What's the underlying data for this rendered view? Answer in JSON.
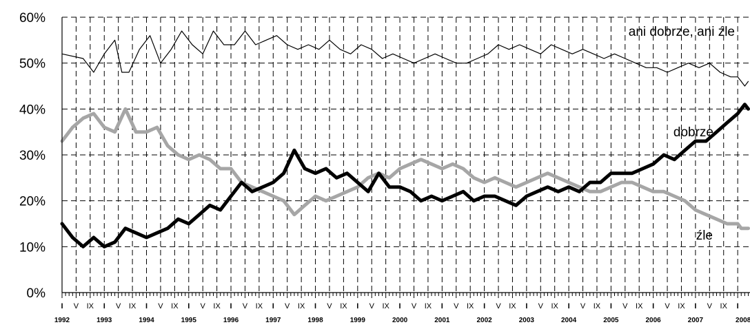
{
  "chart_data": {
    "type": "line",
    "ylim": [
      0,
      60
    ],
    "y_ticks": [
      "0%",
      "10%",
      "20%",
      "30%",
      "40%",
      "50%",
      "60%"
    ],
    "x_start": "1992-01",
    "x_end": "2008-04",
    "month_tick_labels": {
      "1": "I",
      "5": "V",
      "9": "IX"
    },
    "years": [
      "1992",
      "1993",
      "1994",
      "1995",
      "1996",
      "1997",
      "1998",
      "1999",
      "2000",
      "2001",
      "2002",
      "2003",
      "2004",
      "2005",
      "2006",
      "2007",
      "2008"
    ],
    "grid": true,
    "series": [
      {
        "name": "ani dobrze, ani źle",
        "color": "#000000",
        "style": "thin",
        "points": [
          [
            "1992-01",
            52
          ],
          [
            "1992-07",
            51
          ],
          [
            "1992-10",
            48
          ],
          [
            "1993-01",
            52
          ],
          [
            "1993-04",
            55
          ],
          [
            "1993-06",
            48
          ],
          [
            "1993-08",
            48
          ],
          [
            "1993-11",
            53
          ],
          [
            "1994-02",
            56
          ],
          [
            "1994-05",
            50
          ],
          [
            "1994-08",
            53
          ],
          [
            "1994-11",
            57
          ],
          [
            "1995-02",
            54
          ],
          [
            "1995-05",
            52
          ],
          [
            "1995-08",
            57
          ],
          [
            "1995-11",
            54
          ],
          [
            "1996-02",
            54
          ],
          [
            "1996-05",
            57
          ],
          [
            "1996-08",
            54
          ],
          [
            "1996-11",
            55
          ],
          [
            "1997-02",
            56
          ],
          [
            "1997-05",
            54
          ],
          [
            "1997-08",
            53
          ],
          [
            "1997-11",
            54
          ],
          [
            "1998-02",
            53
          ],
          [
            "1998-05",
            55
          ],
          [
            "1998-08",
            53
          ],
          [
            "1998-11",
            52
          ],
          [
            "1999-02",
            54
          ],
          [
            "1999-05",
            53
          ],
          [
            "1999-08",
            51
          ],
          [
            "1999-11",
            52
          ],
          [
            "2000-02",
            51
          ],
          [
            "2000-05",
            50
          ],
          [
            "2000-08",
            51
          ],
          [
            "2000-11",
            52
          ],
          [
            "2001-02",
            51
          ],
          [
            "2001-05",
            50
          ],
          [
            "2001-08",
            50
          ],
          [
            "2001-11",
            51
          ],
          [
            "2002-02",
            52
          ],
          [
            "2002-05",
            54
          ],
          [
            "2002-08",
            53
          ],
          [
            "2002-11",
            54
          ],
          [
            "2003-02",
            53
          ],
          [
            "2003-05",
            52
          ],
          [
            "2003-08",
            54
          ],
          [
            "2003-11",
            53
          ],
          [
            "2004-02",
            52
          ],
          [
            "2004-05",
            53
          ],
          [
            "2004-08",
            52
          ],
          [
            "2004-11",
            51
          ],
          [
            "2005-02",
            52
          ],
          [
            "2005-05",
            51
          ],
          [
            "2005-08",
            50
          ],
          [
            "2005-11",
            49
          ],
          [
            "2006-02",
            49
          ],
          [
            "2006-05",
            48
          ],
          [
            "2006-08",
            49
          ],
          [
            "2006-11",
            50
          ],
          [
            "2007-02",
            49
          ],
          [
            "2007-05",
            50
          ],
          [
            "2007-08",
            48
          ],
          [
            "2007-11",
            47
          ],
          [
            "2008-01",
            47
          ],
          [
            "2008-02",
            46
          ],
          [
            "2008-03",
            45
          ],
          [
            "2008-04",
            46
          ]
        ]
      },
      {
        "name": "dobrze",
        "color": "#000000",
        "style": "thick",
        "points": [
          [
            "1992-01",
            15
          ],
          [
            "1992-04",
            12
          ],
          [
            "1992-07",
            10
          ],
          [
            "1992-10",
            12
          ],
          [
            "1993-01",
            10
          ],
          [
            "1993-04",
            11
          ],
          [
            "1993-07",
            14
          ],
          [
            "1993-10",
            13
          ],
          [
            "1994-01",
            12
          ],
          [
            "1994-04",
            13
          ],
          [
            "1994-07",
            14
          ],
          [
            "1994-10",
            16
          ],
          [
            "1995-01",
            15
          ],
          [
            "1995-04",
            17
          ],
          [
            "1995-07",
            19
          ],
          [
            "1995-10",
            18
          ],
          [
            "1996-01",
            21
          ],
          [
            "1996-04",
            24
          ],
          [
            "1996-07",
            22
          ],
          [
            "1996-10",
            23
          ],
          [
            "1997-01",
            24
          ],
          [
            "1997-04",
            26
          ],
          [
            "1997-07",
            31
          ],
          [
            "1997-10",
            27
          ],
          [
            "1998-01",
            26
          ],
          [
            "1998-04",
            27
          ],
          [
            "1998-07",
            25
          ],
          [
            "1998-10",
            26
          ],
          [
            "1999-01",
            24
          ],
          [
            "1999-04",
            22
          ],
          [
            "1999-07",
            26
          ],
          [
            "1999-10",
            23
          ],
          [
            "2000-01",
            23
          ],
          [
            "2000-04",
            22
          ],
          [
            "2000-07",
            20
          ],
          [
            "2000-10",
            21
          ],
          [
            "2001-01",
            20
          ],
          [
            "2001-04",
            21
          ],
          [
            "2001-07",
            22
          ],
          [
            "2001-10",
            20
          ],
          [
            "2002-01",
            21
          ],
          [
            "2002-04",
            21
          ],
          [
            "2002-07",
            20
          ],
          [
            "2002-10",
            19
          ],
          [
            "2003-01",
            21
          ],
          [
            "2003-04",
            22
          ],
          [
            "2003-07",
            23
          ],
          [
            "2003-10",
            22
          ],
          [
            "2004-01",
            23
          ],
          [
            "2004-04",
            22
          ],
          [
            "2004-07",
            24
          ],
          [
            "2004-10",
            24
          ],
          [
            "2005-01",
            26
          ],
          [
            "2005-04",
            26
          ],
          [
            "2005-07",
            26
          ],
          [
            "2005-10",
            27
          ],
          [
            "2006-01",
            28
          ],
          [
            "2006-04",
            30
          ],
          [
            "2006-07",
            29
          ],
          [
            "2006-10",
            31
          ],
          [
            "2007-01",
            33
          ],
          [
            "2007-04",
            33
          ],
          [
            "2007-07",
            35
          ],
          [
            "2007-10",
            37
          ],
          [
            "2008-01",
            39
          ],
          [
            "2008-02",
            40
          ],
          [
            "2008-03",
            41
          ],
          [
            "2008-04",
            40
          ]
        ]
      },
      {
        "name": "źle",
        "color": "#a6a6a6",
        "style": "thick",
        "points": [
          [
            "1992-01",
            33
          ],
          [
            "1992-04",
            36
          ],
          [
            "1992-07",
            38
          ],
          [
            "1992-10",
            39
          ],
          [
            "1993-01",
            36
          ],
          [
            "1993-04",
            35
          ],
          [
            "1993-07",
            40
          ],
          [
            "1993-10",
            35
          ],
          [
            "1994-01",
            35
          ],
          [
            "1994-04",
            36
          ],
          [
            "1994-07",
            32
          ],
          [
            "1994-10",
            30
          ],
          [
            "1995-01",
            29
          ],
          [
            "1995-04",
            30
          ],
          [
            "1995-07",
            29
          ],
          [
            "1995-10",
            27
          ],
          [
            "1996-01",
            27
          ],
          [
            "1996-04",
            24
          ],
          [
            "1996-07",
            23
          ],
          [
            "1996-10",
            22
          ],
          [
            "1997-01",
            21
          ],
          [
            "1997-04",
            20
          ],
          [
            "1997-07",
            17
          ],
          [
            "1997-10",
            19
          ],
          [
            "1998-01",
            21
          ],
          [
            "1998-04",
            20
          ],
          [
            "1998-07",
            21
          ],
          [
            "1998-10",
            22
          ],
          [
            "1999-01",
            23
          ],
          [
            "1999-04",
            25
          ],
          [
            "1999-07",
            26
          ],
          [
            "1999-10",
            25
          ],
          [
            "2000-01",
            27
          ],
          [
            "2000-04",
            28
          ],
          [
            "2000-07",
            29
          ],
          [
            "2000-10",
            28
          ],
          [
            "2001-01",
            27
          ],
          [
            "2001-04",
            28
          ],
          [
            "2001-07",
            27
          ],
          [
            "2001-10",
            25
          ],
          [
            "2002-01",
            24
          ],
          [
            "2002-04",
            25
          ],
          [
            "2002-07",
            24
          ],
          [
            "2002-10",
            23
          ],
          [
            "2003-01",
            24
          ],
          [
            "2003-04",
            25
          ],
          [
            "2003-07",
            26
          ],
          [
            "2003-10",
            25
          ],
          [
            "2004-01",
            24
          ],
          [
            "2004-04",
            23
          ],
          [
            "2004-07",
            22
          ],
          [
            "2004-10",
            22
          ],
          [
            "2005-01",
            23
          ],
          [
            "2005-04",
            24
          ],
          [
            "2005-07",
            24
          ],
          [
            "2005-10",
            23
          ],
          [
            "2006-01",
            22
          ],
          [
            "2006-04",
            22
          ],
          [
            "2006-07",
            21
          ],
          [
            "2006-10",
            20
          ],
          [
            "2007-01",
            18
          ],
          [
            "2007-04",
            17
          ],
          [
            "2007-07",
            16
          ],
          [
            "2007-10",
            15
          ],
          [
            "2008-01",
            15
          ],
          [
            "2008-02",
            14
          ],
          [
            "2008-03",
            14
          ],
          [
            "2008-04",
            14
          ]
        ]
      }
    ],
    "annotations": [
      {
        "text": "ani dobrze, ani źle",
        "series": "ani dobrze, ani źle",
        "anchor": "upper right"
      },
      {
        "text": "dobrze",
        "series": "dobrze",
        "anchor": "right, near end of line"
      },
      {
        "text": "źle",
        "series": "źle",
        "anchor": "lower right, below line"
      }
    ]
  }
}
